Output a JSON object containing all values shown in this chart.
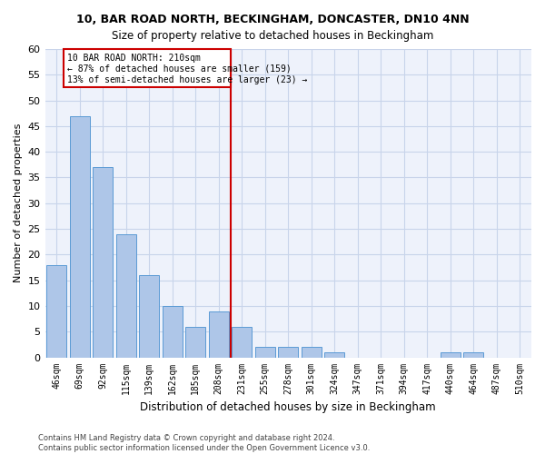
{
  "title": "10, BAR ROAD NORTH, BECKINGHAM, DONCASTER, DN10 4NN",
  "subtitle": "Size of property relative to detached houses in Beckingham",
  "xlabel": "Distribution of detached houses by size in Beckingham",
  "ylabel": "Number of detached properties",
  "bar_labels": [
    "46sqm",
    "69sqm",
    "92sqm",
    "115sqm",
    "139sqm",
    "162sqm",
    "185sqm",
    "208sqm",
    "231sqm",
    "255sqm",
    "278sqm",
    "301sqm",
    "324sqm",
    "347sqm",
    "371sqm",
    "394sqm",
    "417sqm",
    "440sqm",
    "464sqm",
    "487sqm",
    "510sqm"
  ],
  "bar_values": [
    18,
    47,
    37,
    24,
    16,
    10,
    6,
    9,
    6,
    2,
    2,
    2,
    1,
    0,
    0,
    0,
    0,
    1,
    1,
    0,
    0
  ],
  "bar_color": "#aec6e8",
  "bar_edge_color": "#5b9bd5",
  "background_color": "#eef2fb",
  "grid_color": "#c8d4ea",
  "reference_line_color": "#cc0000",
  "annotation_line1": "10 BAR ROAD NORTH: 210sqm",
  "annotation_line2": "← 87% of detached houses are smaller (159)",
  "annotation_line3": "13% of semi-detached houses are larger (23) →",
  "annotation_box_color": "#cc0000",
  "ylim": [
    0,
    60
  ],
  "yticks": [
    0,
    5,
    10,
    15,
    20,
    25,
    30,
    35,
    40,
    45,
    50,
    55,
    60
  ],
  "footer_line1": "Contains HM Land Registry data © Crown copyright and database right 2024.",
  "footer_line2": "Contains public sector information licensed under the Open Government Licence v3.0."
}
